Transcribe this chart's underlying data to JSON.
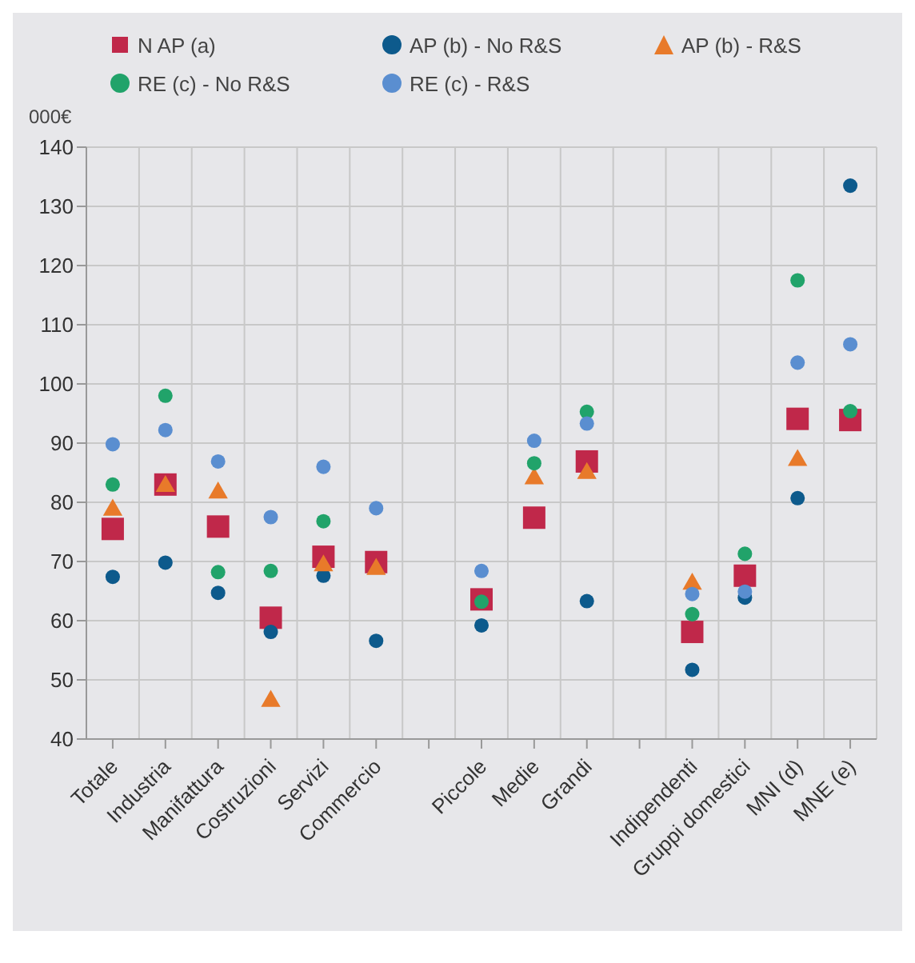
{
  "chart_data": {
    "type": "scatter",
    "ylabel": "000€",
    "categories": [
      "Totale",
      "Industria",
      "Manifattura",
      "Costruzioni",
      "Servizi",
      "Commercio",
      null,
      "Piccole",
      "Medie",
      "Grandi",
      null,
      "Indipendenti",
      "Gruppi domestici",
      "MNI (d)",
      "MNE (e)"
    ],
    "series": [
      {
        "name": "N AP (a)",
        "color": "#c0284a",
        "marker": "square",
        "values": [
          75.5,
          83,
          75.9,
          60.5,
          70.8,
          69.9,
          null,
          63.6,
          77.4,
          86.9,
          null,
          58.1,
          67.6,
          94.1,
          93.9
        ]
      },
      {
        "name": "AP (b) - No R&S",
        "color": "#0d5a8c",
        "marker": "circle",
        "values": [
          67.4,
          69.8,
          64.7,
          58.1,
          67.6,
          56.6,
          null,
          59.2,
          null,
          63.3,
          null,
          51.7,
          63.9,
          80.7,
          133.5
        ]
      },
      {
        "name": "AP (b) - R&S",
        "color": "#e87a2a",
        "marker": "triangle",
        "values": [
          78.7,
          82.7,
          81.6,
          46.4,
          69.3,
          68.7,
          null,
          null,
          84,
          84.9,
          null,
          66.2,
          null,
          87.1,
          null
        ]
      },
      {
        "name": "RE (c) - No R&S",
        "color": "#21a36a",
        "marker": "circle",
        "values": [
          83,
          98,
          68.2,
          68.4,
          76.8,
          null,
          null,
          63.2,
          86.6,
          95.3,
          null,
          61.1,
          71.3,
          117.5,
          95.4
        ]
      },
      {
        "name": "RE (c) - R&S",
        "color": "#5a8ed0",
        "marker": "circle",
        "values": [
          89.8,
          92.2,
          86.9,
          77.5,
          86,
          79,
          null,
          68.4,
          90.4,
          93.3,
          null,
          64.5,
          64.9,
          103.6,
          106.7
        ]
      }
    ],
    "ylim": [
      40,
      140
    ],
    "yticks": [
      40,
      50,
      60,
      70,
      80,
      90,
      100,
      110,
      120,
      130,
      140
    ],
    "grid": true,
    "legend": "top"
  }
}
